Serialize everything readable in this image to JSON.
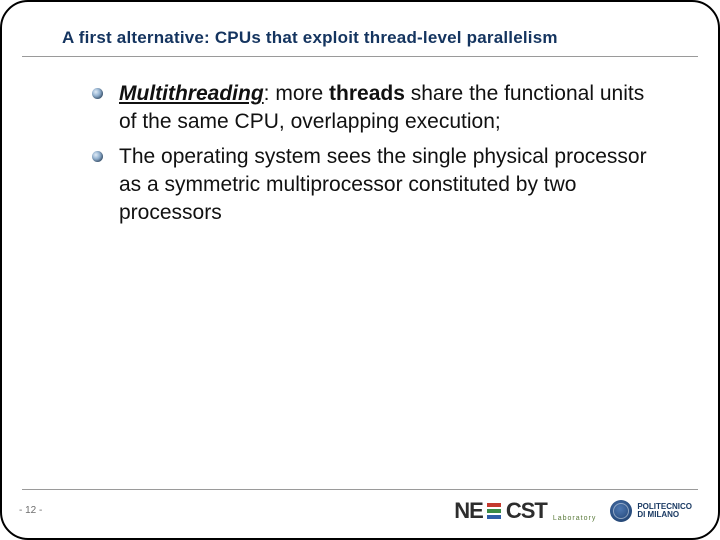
{
  "title": "A first alternative: CPUs that exploit thread-level parallelism",
  "title_color": "#14345f",
  "title_fontsize": 17,
  "body_fontsize": 21,
  "body_color": "#111111",
  "bullets": [
    {
      "keyword": "Multithreading",
      "bold_after": "threads",
      "pre": ": more ",
      "post": " share the functional units of the same CPU, overlapping execution;"
    },
    {
      "keyword": null,
      "text": "The operating system sees the single physical processor as a symmetric multiprocessor constituted by two processors"
    }
  ],
  "page_number": "- 12 -",
  "logos": {
    "necst": {
      "label_ne": "NE",
      "label_cst": "CST",
      "sub": "Laboratory"
    },
    "polimi": {
      "line1": "POLITECNICO",
      "line2": "DI MILANO"
    }
  },
  "colors": {
    "rule": "#9a9a9a",
    "background": "#ffffff",
    "frame": "#000000"
  }
}
